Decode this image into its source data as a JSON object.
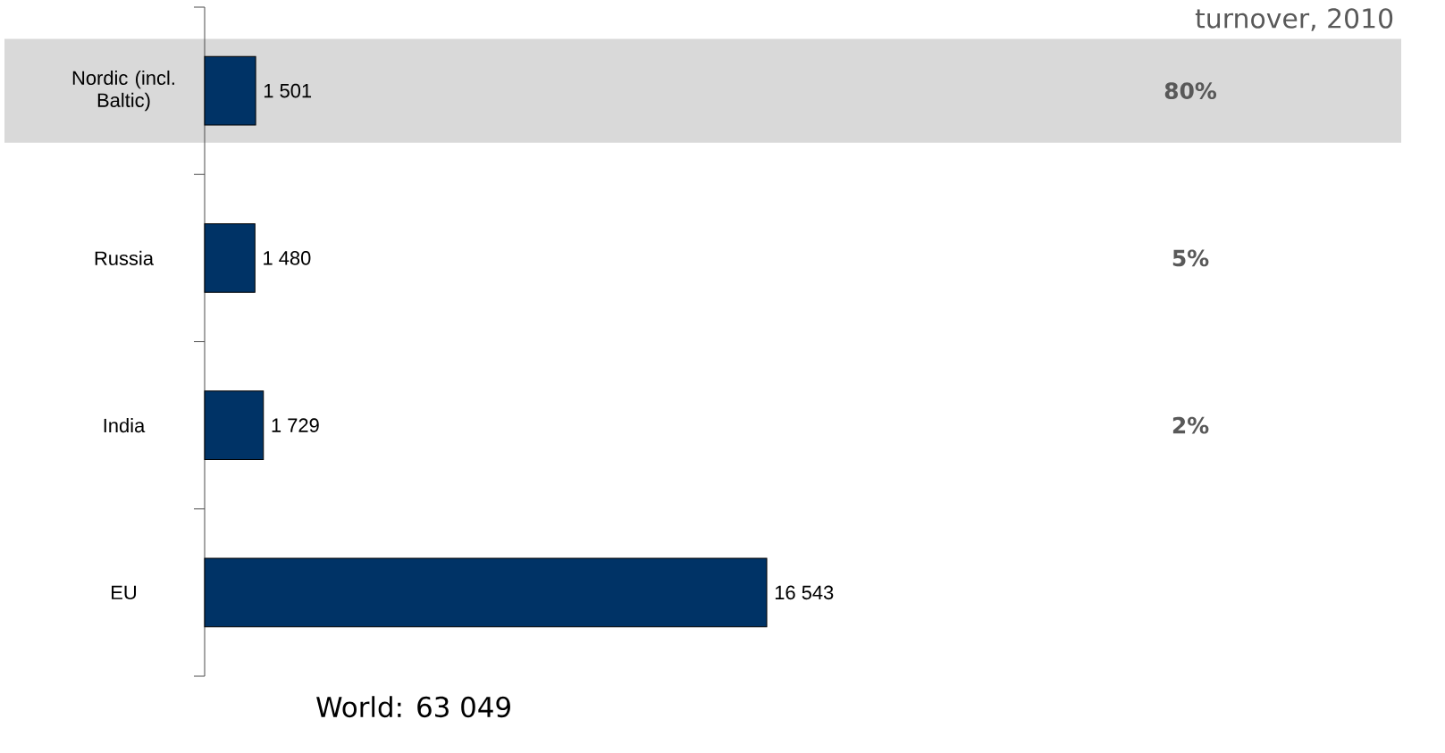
{
  "chart_data": {
    "type": "bar",
    "orientation": "horizontal",
    "categories": [
      "Nordic (incl. Baltic)",
      "Russia",
      "India",
      "EU"
    ],
    "values": [
      1501,
      1480,
      1729,
      16543
    ],
    "value_labels": [
      "1 501",
      "1 480",
      "1 729",
      "16 543"
    ],
    "color": "#003366",
    "bands": [
      {
        "axis": "y",
        "from": "Nordic (incl. Baltic)",
        "to": "Nordic (incl. Baltic)",
        "color": "#d9d9d9"
      }
    ],
    "annotations": [
      "turnover, 2010",
      "80%",
      "5%",
      "2%",
      "World:    63 049"
    ],
    "grid": false
  }
}
